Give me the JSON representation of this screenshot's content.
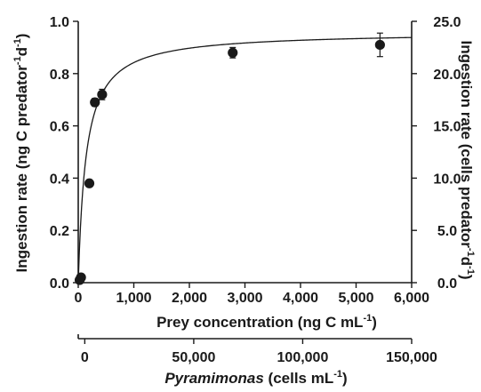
{
  "chart_data": {
    "type": "scatter",
    "series": [
      {
        "x": [
          25,
          50,
          200,
          300,
          430,
          2780,
          5430
        ],
        "y": [
          0.01,
          0.02,
          0.38,
          0.69,
          0.72,
          0.88,
          0.91
        ],
        "y_error": [
          0.005,
          0.005,
          0.01,
          0.015,
          0.02,
          0.02,
          0.045
        ],
        "marker": "filled-circle",
        "color": "#1a1a1a"
      }
    ],
    "fit_curve": {
      "type": "saturating",
      "vmax": 0.96,
      "k": 140,
      "color": "#1a1a1a"
    },
    "x_axis": {
      "label": "Prey concentration (ng C mL",
      "label_sup": "-1",
      "label_end": ")",
      "ticks": [
        "0",
        "1,000",
        "2,000",
        "3,000",
        "4,000",
        "5,000",
        "6,000"
      ],
      "tick_values": [
        0,
        1000,
        2000,
        3000,
        4000,
        5000,
        6000
      ],
      "lim": [
        0,
        6000
      ]
    },
    "x2_axis": {
      "label_italic": "Pyramimonas",
      "label": " (cells mL",
      "label_sup": "-1",
      "label_end": ")",
      "ticks": [
        "0",
        "50,000",
        "100,000",
        "150,000"
      ],
      "tick_values": [
        0,
        50000,
        100000,
        150000
      ],
      "lim": [
        -3000,
        150000
      ]
    },
    "y_axis": {
      "label": "Ingestion rate (ng C predator",
      "label_sup1": "-1",
      "label_mid": "d",
      "label_sup2": "-1",
      "label_end": ")",
      "ticks": [
        "0.0",
        "0.2",
        "0.4",
        "0.6",
        "0.8",
        "1.0"
      ],
      "tick_values": [
        0,
        0.2,
        0.4,
        0.6,
        0.8,
        1.0
      ],
      "lim": [
        0,
        1.0
      ]
    },
    "y2_axis": {
      "label": "Ingestion rate (cells predator",
      "label_sup1": "-1",
      "label_mid": "d",
      "label_sup2": "-1",
      "label_end": ")",
      "ticks": [
        "0.0",
        "5.0",
        "10.0",
        "15.0",
        "20.0",
        "25.0"
      ],
      "tick_values": [
        0,
        5,
        10,
        15,
        20,
        25
      ],
      "lim": [
        0,
        25
      ]
    },
    "grid": false
  }
}
